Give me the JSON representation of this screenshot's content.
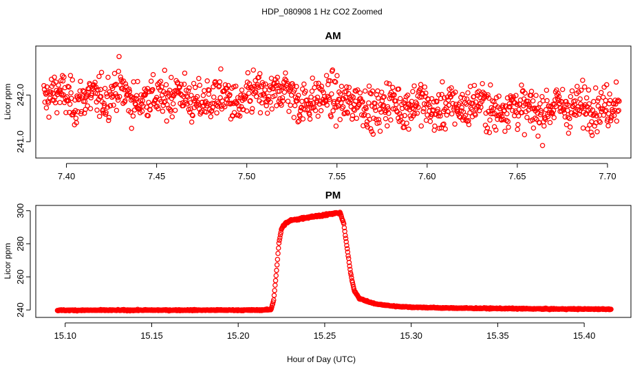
{
  "figure": {
    "title": "HDP_080908  1 Hz CO2 Zoomed",
    "xlabel": "Hour of Day (UTC)"
  },
  "chart_data": [
    {
      "type": "scatter",
      "title": "AM",
      "xlabel": "",
      "ylabel": "Licor ppm",
      "xlim": [
        7.383,
        7.713
      ],
      "ylim": [
        240.65,
        243.05
      ],
      "xticks": [
        7.4,
        7.45,
        7.5,
        7.55,
        7.6,
        7.65,
        7.7
      ],
      "xtick_labels": [
        "7.40",
        "7.45",
        "7.50",
        "7.55",
        "7.60",
        "7.65",
        "7.70"
      ],
      "yticks": [
        241.0,
        242.0
      ],
      "ytick_labels": [
        "241.0",
        "242.0"
      ],
      "marker": "open-circle",
      "color": "#ff0000",
      "series": [
        {
          "x_start": 7.3875,
          "x_end": 7.7065,
          "n_points": 1149,
          "x": [
            7.3875,
            7.3958,
            7.4042,
            7.4125,
            7.4208,
            7.4292,
            7.4375,
            7.4458,
            7.4542,
            7.4625,
            7.4708,
            7.4792,
            7.4875,
            7.4958,
            7.5042,
            7.5125,
            7.5208,
            7.5292,
            7.5375,
            7.5458,
            7.5542,
            7.5625,
            7.5708,
            7.5792,
            7.5875,
            7.5958,
            7.6042,
            7.6125,
            7.6208,
            7.6292,
            7.6375,
            7.6458,
            7.6542,
            7.6625,
            7.6708,
            7.6792,
            7.6875,
            7.6958,
            7.7065
          ],
          "y": [
            241.9,
            242.1,
            241.8,
            242.0,
            241.9,
            242.2,
            241.8,
            242.0,
            241.9,
            242.1,
            241.8,
            241.9,
            242.0,
            241.7,
            242.1,
            241.9,
            242.2,
            241.8,
            241.9,
            242.0,
            241.8,
            241.9,
            241.6,
            241.9,
            241.7,
            241.9,
            241.6,
            241.8,
            241.7,
            241.9,
            241.6,
            241.8,
            241.7,
            241.6,
            241.8,
            241.7,
            241.8,
            241.7,
            241.9
          ]
        }
      ]
    },
    {
      "type": "scatter",
      "title": "PM",
      "xlabel": "Hour of Day (UTC)",
      "ylabel": "Licor ppm",
      "xlim": [
        15.083,
        15.427
      ],
      "ylim": [
        235.5,
        303.2
      ],
      "xticks": [
        15.1,
        15.15,
        15.2,
        15.25,
        15.3,
        15.35,
        15.4
      ],
      "xtick_labels": [
        "15.10",
        "15.15",
        "15.20",
        "15.25",
        "15.30",
        "15.35",
        "15.40"
      ],
      "yticks": [
        240,
        260,
        280,
        300
      ],
      "ytick_labels": [
        "240",
        "260",
        "280",
        "300"
      ],
      "marker": "open-circle",
      "color": "#ff0000",
      "series": [
        {
          "x_start": 15.0955,
          "x_end": 15.4155,
          "n_points": 1153,
          "x": [
            15.0955,
            15.15,
            15.21,
            15.219,
            15.2205,
            15.222,
            15.2235,
            15.225,
            15.227,
            15.23,
            15.24,
            15.25,
            15.259,
            15.261,
            15.263,
            15.265,
            15.267,
            15.27,
            15.275,
            15.28,
            15.29,
            15.3,
            15.32,
            15.35,
            15.38,
            15.4155
          ],
          "y": [
            239.8,
            239.9,
            239.9,
            240.2,
            246.0,
            262.0,
            280.0,
            289.0,
            292.0,
            294.0,
            296.0,
            297.5,
            298.8,
            292.0,
            277.0,
            262.0,
            252.0,
            247.0,
            245.0,
            243.5,
            242.3,
            241.7,
            241.2,
            240.9,
            240.6,
            240.5
          ]
        }
      ]
    }
  ]
}
